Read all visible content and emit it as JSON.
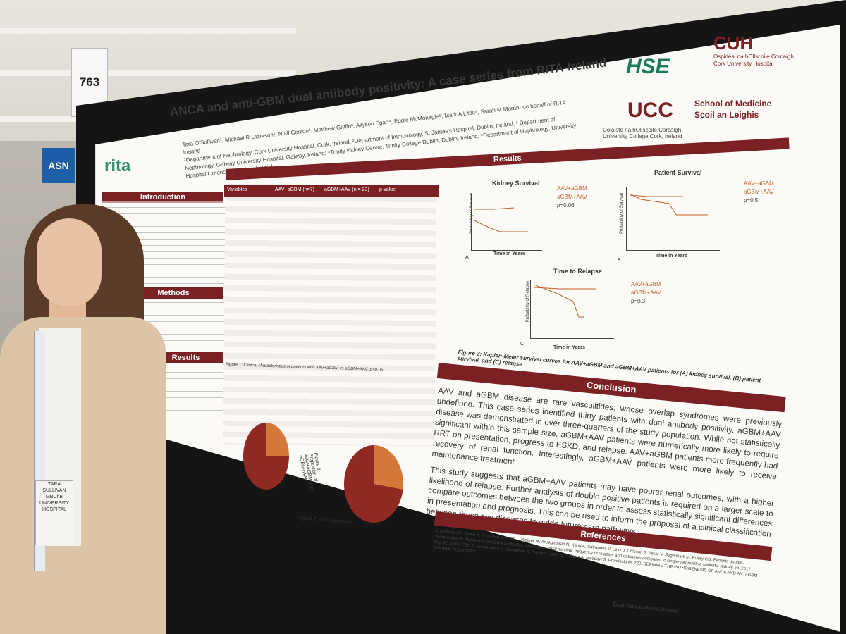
{
  "scene": {
    "board_number": "763",
    "venue_sign": "ASN"
  },
  "poster": {
    "title": "ANCA and anti-GBM dual antibody positivity: A case series from RITA-Ireland",
    "authors": "Tara O'Sullivan¹, Michael R Clarkson¹, Niall Conlon², Matthew Griffin³, Allyson Egan⁴, Eddie McMonagle⁵, Mark A Little⁴, Sarah M Moran¹ on behalf of RITA Ireland",
    "affiliations": "¹Department of Nephrology, Cork University Hospital, Cork, Ireland; ²Department of Immunology, St James's Hospital, Dublin, Ireland; ³ Department of Nephrology, Galway University Hospital, Galway, Ireland; ⁴Trinity Kidney Centre, Trinity College Dublin, Dublin, Ireland; ⁵Department of Nephrology, University Hospital Limerick, Limerick, Ireland",
    "logos": {
      "rita": "rita",
      "hse": "HSE",
      "cuh": "CUH",
      "cuh_sub": "Ospidéal na hOllscoile Corcaigh\nCork University Hospital",
      "ucc": "UCC",
      "ucc_sub": "Coláiste na hOllscoile Corcaigh\nUniversity College Cork, Ireland",
      "school": "School of Medicine\nScoil an Leighis"
    },
    "sections": {
      "introduction": "Introduction",
      "methods": "Methods",
      "results_left": "Results",
      "results": "Results",
      "conclusion": "Conclusion",
      "references": "References"
    },
    "table": {
      "headers": [
        "Variables",
        "AAV+aGBM (n=7)",
        "aGBM+AAV (n = 23)",
        "p-value"
      ],
      "caption": "Figure 1: Clinical characteristics of patients with AAV+aGBM vs aGBM+AAV; p<0.05"
    },
    "pies": {
      "left_caption": "Figure 1: Proportion of AAV+aGBM and aGBM+AAV",
      "right_caption": "Figure 2: ANCA positivity"
    },
    "charts": {
      "kidney_title": "Kidney Survival",
      "patient_title": "Patient Survival",
      "relapse_title": "Time to Relapse",
      "legend_a": "AAV+aGBM",
      "legend_b": "aGBM+AAV",
      "p_kidney": "p=0.06",
      "p_patient": "p=0.5",
      "p_relapse": "p=0.3",
      "x_label": "Time in Years",
      "y_label_survival": "Probability of Survival",
      "y_label_relapse": "Probability of Relapse",
      "panel_a": "A",
      "panel_b": "B",
      "panel_c": "C",
      "figure_caption": "Figure 3: Kaplan-Meier survival curves for AAV+aGBM and aGBM+AAV patients for (A) kidney survival, (B) patient survival, and (C) relapse"
    },
    "conclusion_text": "AAV and aGBM disease are rare vasculitides, whose overlap syndromes were previously undefined. This case series identified thirty patients with dual antibody positivity. aGBM+AAV disease was demonstrated in over three-quarters of the study population. While not statistically significant within this sample size, aGBM+AAV patients were numerically more likely to require RRT on presentation, progress to ESKD, and relapse. AAV+aGBM patients more frequently had recovery of renal function. Interestingly, aGBM+AAV patients were more likely to receive maintenance treatment.",
    "conclusion_text_2": "This study suggests that aGBM+AAV patients may have poorer renal outcomes, with a higher likelihood of relapse. Further analysis of double positive patients is required on a larger scale to compare outcomes between the two groups in order to assess statistically significant differences in presentation and prognosis. This can be used to inform the proposal of a clinical classification between these two diseases to guide future care pathways.",
    "references_text": "1. McAdoo SP, Tanna A, Hrušková Z, Holm L, Weiner M, Arulkumaran N, Kang A, Satrapová V, Levy J, Ohlsson S, Tesar V, Segelmark M, Pusey CD. Patients double-seropositive for ANCA and anti-GBM antibodies have varied renal survival, frequency of relapse, and outcomes compared to single-seropositive patients. Kidney Int. 2017 Sep;92(3):693-702. 2. Sonnemann J, Henderson S, Pusey C, Little M, Salama A, Meadow S, Prendecki M, 220. DEFINING THE PATHOGENESIS OF ANCA AND ANTI-GBM DOUBLE POSITIVITY.",
    "email": "Email: tara.osullivan1@hse.ie"
  },
  "person": {
    "badge_text": "TARA\nSULLIVAN\nMBChB\nUNIVERSITY\nHOSPITAL"
  }
}
